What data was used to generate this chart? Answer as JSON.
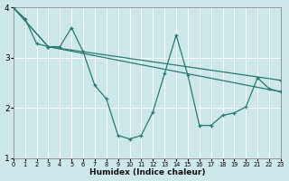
{
  "bg_color": "#cce8e8",
  "grid_color": "#ffffff",
  "line_color": "#2a7a6e",
  "xlabel": "Humidex (Indice chaleur)",
  "xlim": [
    0,
    23
  ],
  "ylim": [
    1,
    4
  ],
  "yticks": [
    1,
    2,
    3,
    4
  ],
  "xticks": [
    0,
    1,
    2,
    3,
    4,
    5,
    6,
    7,
    8,
    9,
    10,
    11,
    12,
    13,
    14,
    15,
    16,
    17,
    18,
    19,
    20,
    21,
    22,
    23
  ],
  "series1_x": [
    0,
    1,
    2,
    3,
    4,
    5,
    6,
    7,
    8,
    9,
    10,
    11,
    12,
    13,
    14,
    15,
    16,
    17,
    18,
    19,
    20,
    21,
    22,
    23
  ],
  "series1_y": [
    4.0,
    3.78,
    3.28,
    3.22,
    3.22,
    3.6,
    3.12,
    2.45,
    2.18,
    1.45,
    1.38,
    1.45,
    1.92,
    2.68,
    3.45,
    2.65,
    1.65,
    1.65,
    1.85,
    1.9,
    2.02,
    2.6,
    2.38,
    2.32
  ],
  "series2_x": [
    0,
    3,
    23
  ],
  "series2_y": [
    4.0,
    3.22,
    2.55
  ],
  "series3_x": [
    0,
    3,
    23
  ],
  "series3_y": [
    4.0,
    3.22,
    2.32
  ]
}
